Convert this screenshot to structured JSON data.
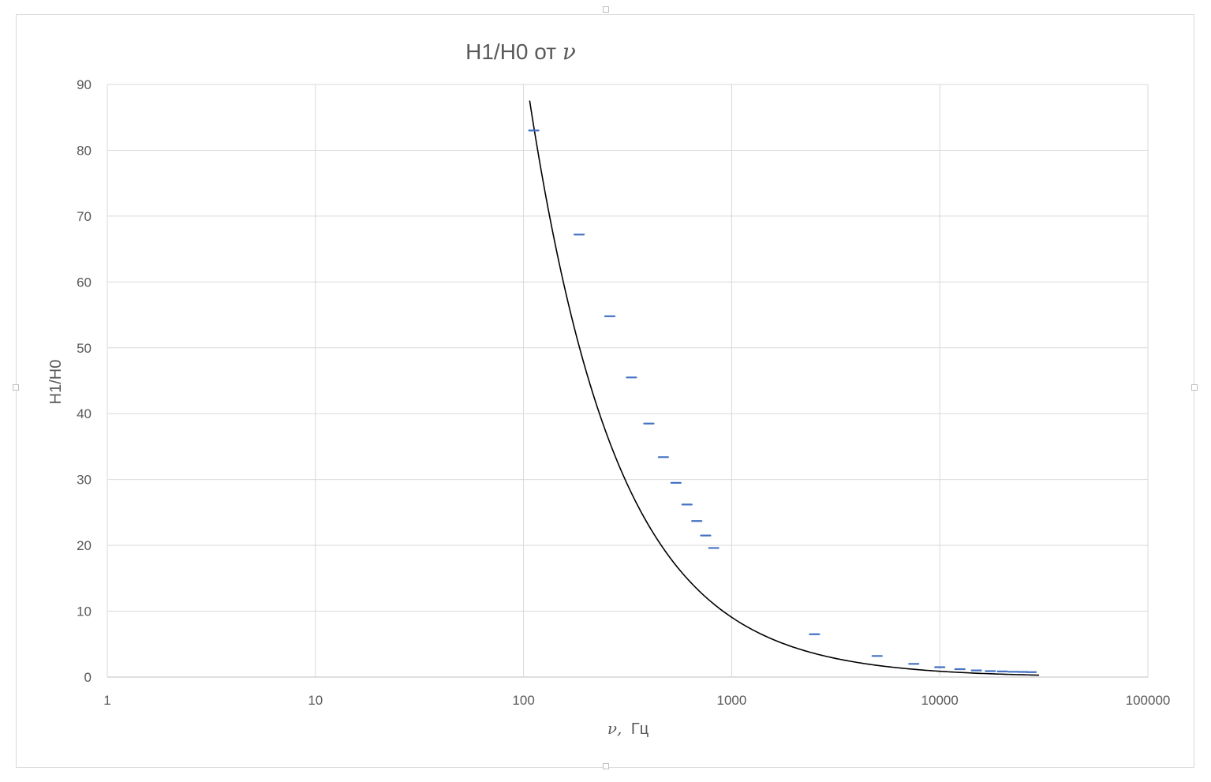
{
  "chart_data": {
    "type": "scatter",
    "title": "H1/H0 от",
    "title_symbol": "ν",
    "xlabel": "Гц",
    "xlabel_symbol": "ν,",
    "ylabel": "H1/H0",
    "xscale": "log",
    "xlim": [
      1,
      100000
    ],
    "ylim": [
      0,
      90
    ],
    "x_ticks": [
      "1",
      "10",
      "100",
      "1000",
      "10000",
      "100000"
    ],
    "y_ticks": [
      "0",
      "10",
      "20",
      "30",
      "40",
      "50",
      "60",
      "70",
      "80",
      "90"
    ],
    "grid": true,
    "legend": "none",
    "series": [
      {
        "marker": "dash",
        "color": "#4472c4",
        "points": [
          [
            112,
            83.0
          ],
          [
            185,
            67.2
          ],
          [
            260,
            54.8
          ],
          [
            330,
            45.5
          ],
          [
            400,
            38.5
          ],
          [
            470,
            33.4
          ],
          [
            540,
            29.5
          ],
          [
            610,
            26.2
          ],
          [
            680,
            23.7
          ],
          [
            750,
            21.5
          ],
          [
            820,
            19.6
          ],
          [
            2500,
            6.5
          ],
          [
            5000,
            3.2
          ],
          [
            7500,
            2.0
          ],
          [
            10000,
            1.5
          ],
          [
            12500,
            1.2
          ],
          [
            15000,
            1.0
          ],
          [
            17500,
            0.9
          ],
          [
            20000,
            0.85
          ],
          [
            22500,
            0.8
          ],
          [
            25000,
            0.78
          ],
          [
            27500,
            0.75
          ]
        ]
      }
    ],
    "trendline": {
      "type": "power",
      "color": "#000000",
      "coefficient": 10000,
      "exponent": -1.014,
      "x_range": [
        107,
        30000
      ]
    }
  }
}
